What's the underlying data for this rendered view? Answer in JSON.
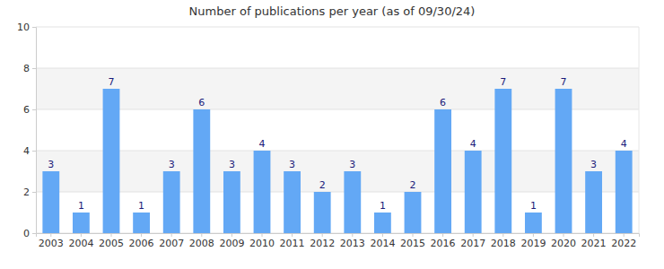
{
  "chart_data": {
    "type": "bar",
    "title": "Number of publications per year (as of 09/30/24)",
    "categories": [
      "2003",
      "2004",
      "2005",
      "2006",
      "2007",
      "2008",
      "2009",
      "2010",
      "2011",
      "2012",
      "2013",
      "2014",
      "2015",
      "2016",
      "2017",
      "2018",
      "2019",
      "2020",
      "2021",
      "2022"
    ],
    "values": [
      3,
      1,
      7,
      1,
      3,
      6,
      3,
      4,
      3,
      2,
      3,
      1,
      2,
      6,
      4,
      7,
      1,
      7,
      3,
      4
    ],
    "color": "#63a8f5",
    "ylim": [
      0,
      10
    ],
    "yticks": [
      0,
      2,
      4,
      6,
      8,
      10
    ],
    "grid": true,
    "data_labels": true
  }
}
